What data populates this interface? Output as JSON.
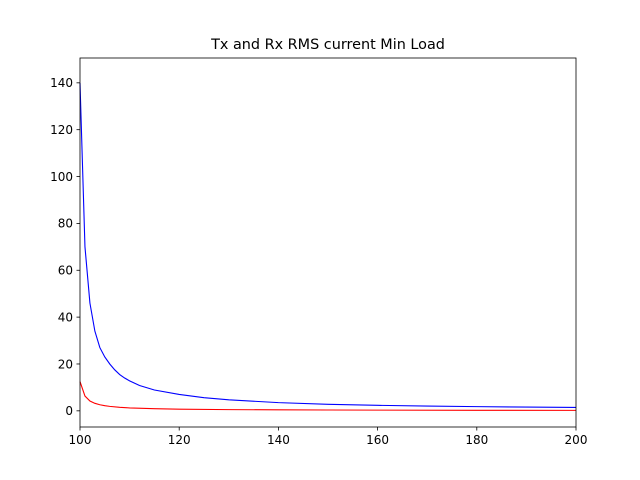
{
  "chart_data": {
    "type": "line",
    "title": "Tx and Rx RMS current Min Load",
    "xlabel": "",
    "ylabel": "",
    "xlim": [
      100,
      200
    ],
    "ylim": [
      -6.9,
      150.6
    ],
    "xticks": [
      100,
      120,
      140,
      160,
      180,
      200
    ],
    "yticks": [
      0,
      20,
      40,
      60,
      80,
      100,
      120,
      140
    ],
    "grid": false,
    "legend": "none",
    "series": [
      {
        "color": "#0000ff",
        "x": [
          100,
          101,
          102,
          103,
          104,
          105,
          106,
          107,
          108,
          109,
          110,
          112,
          115,
          120,
          125,
          130,
          140,
          150,
          160,
          170,
          180,
          190,
          200
        ],
        "y": [
          140,
          70,
          46,
          34,
          27,
          23,
          20,
          17.5,
          15.5,
          14,
          12.8,
          10.8,
          8.9,
          7.0,
          5.6,
          4.7,
          3.5,
          2.8,
          2.35,
          2.05,
          1.8,
          1.6,
          1.45
        ]
      },
      {
        "color": "#ff0000",
        "x": [
          100,
          101,
          102,
          103,
          104,
          105,
          106,
          108,
          110,
          115,
          120,
          130,
          140,
          150,
          160,
          180,
          200
        ],
        "y": [
          12.5,
          6.3,
          4.2,
          3.2,
          2.6,
          2.2,
          1.9,
          1.5,
          1.25,
          0.9,
          0.72,
          0.52,
          0.42,
          0.35,
          0.3,
          0.24,
          0.2
        ]
      }
    ]
  }
}
